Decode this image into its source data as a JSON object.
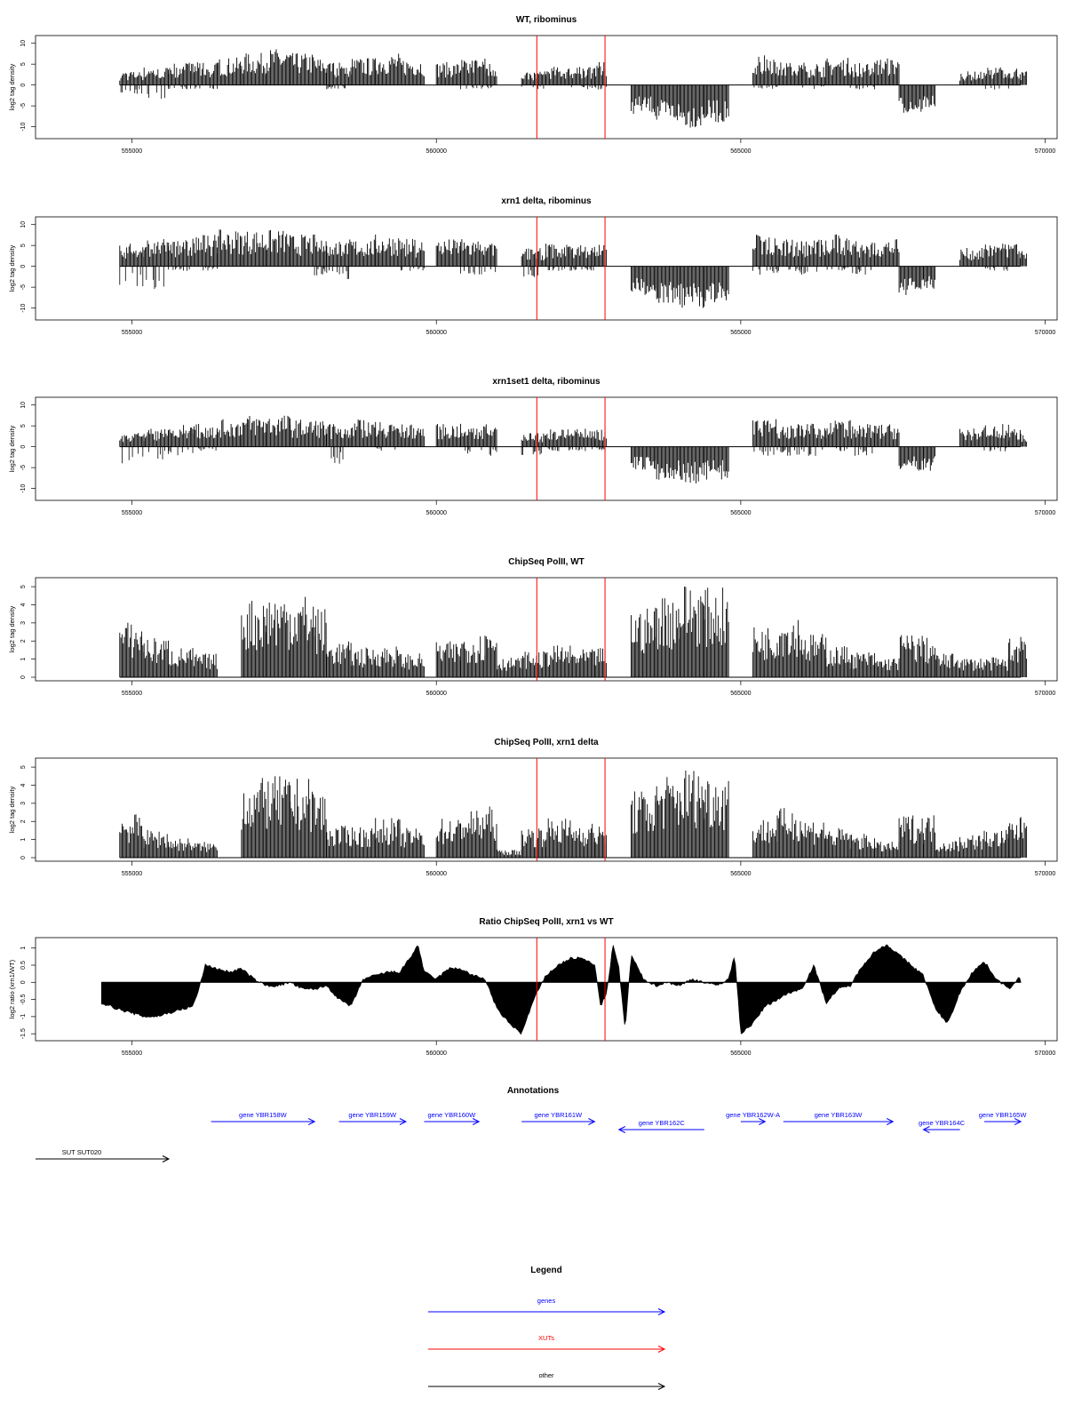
{
  "colors": {
    "gene": "#0000ff",
    "xut": "#ff0000",
    "other": "#000000",
    "marker": "#ff0000",
    "bars": "#000000"
  },
  "chart_data": [
    {
      "type": "bar",
      "title": "WT, ribominus",
      "ylabel": "log2 tag density",
      "xlim": [
        554000,
        569700
      ],
      "ylim": [
        -12,
        11
      ],
      "yticks": [
        10,
        5,
        0,
        -5,
        -10
      ],
      "xticks": [
        "555000",
        "560000",
        "565000",
        "570000"
      ],
      "markers": [
        561650,
        562770
      ],
      "x": [
        554800,
        555200,
        555600,
        556000,
        556400,
        556800,
        557200,
        557600,
        558000,
        558200,
        558600,
        559000,
        559400,
        559800,
        560000,
        560400,
        560800,
        561000,
        561400,
        561800,
        562200,
        562600,
        562800,
        563200,
        563600,
        564000,
        564400,
        564800,
        565200,
        565600,
        566000,
        566400,
        566800,
        567200,
        567600,
        568000,
        568200,
        568600,
        569000,
        569400,
        569600
      ],
      "values": [
        3,
        4,
        5,
        5,
        6,
        7,
        8,
        7,
        6,
        5,
        6,
        7,
        6,
        0,
        5,
        6,
        5,
        0,
        3,
        4,
        4,
        5,
        0,
        -6,
        -8,
        -9,
        -8,
        0,
        7,
        5,
        5,
        6,
        5,
        6,
        -6,
        -5,
        0,
        3,
        4,
        4,
        3
      ],
      "neg_values": [
        -2,
        -3,
        -1,
        -1,
        0,
        0,
        0,
        0,
        0,
        -1,
        0,
        0,
        0,
        0,
        0,
        -1,
        -1,
        0,
        -1,
        0,
        -1,
        -1,
        0,
        0,
        0,
        0,
        0,
        0,
        -1,
        0,
        -1,
        0,
        -1,
        0,
        0,
        0,
        0,
        0,
        -1,
        0,
        0
      ]
    },
    {
      "type": "bar",
      "title": "xrn1 delta, ribominus",
      "ylabel": "log2 tag density",
      "xlim": [
        554000,
        569700
      ],
      "ylim": [
        -12,
        11
      ],
      "yticks": [
        10,
        5,
        0,
        -5,
        -10
      ],
      "xticks": [
        "555000",
        "560000",
        "565000",
        "570000"
      ],
      "markers": [
        561650,
        562770
      ],
      "x": [
        554800,
        555200,
        555600,
        556000,
        556400,
        556800,
        557200,
        557600,
        558000,
        558200,
        558600,
        559000,
        559400,
        559800,
        560000,
        560400,
        560800,
        561000,
        561400,
        561800,
        562200,
        562600,
        562800,
        563200,
        563600,
        564000,
        564400,
        564800,
        565200,
        565600,
        566000,
        566400,
        566800,
        567200,
        567600,
        568000,
        568200,
        568600,
        569000,
        569400,
        569600
      ],
      "values": [
        5,
        6,
        6,
        7,
        8,
        8,
        8,
        7,
        7,
        6,
        6,
        7,
        6,
        0,
        6,
        6,
        5,
        0,
        4,
        5,
        5,
        5,
        0,
        -6,
        -8,
        -9,
        -8,
        0,
        7,
        6,
        6,
        7,
        6,
        6,
        -6,
        -5,
        0,
        4,
        5,
        5,
        4
      ],
      "neg_values": [
        -5,
        -5,
        -1,
        -1,
        0,
        0,
        0,
        0,
        -2,
        -3,
        0,
        0,
        -1,
        0,
        0,
        -2,
        -2,
        0,
        -3,
        -1,
        -1,
        -1,
        0,
        0,
        0,
        0,
        0,
        0,
        -2,
        -2,
        -2,
        -1,
        -2,
        0,
        0,
        0,
        0,
        0,
        -1,
        0,
        0
      ]
    },
    {
      "type": "bar",
      "title": "xrn1set1 delta, ribominus",
      "ylabel": "log2 tag density",
      "xlim": [
        554000,
        569700
      ],
      "ylim": [
        -12,
        11
      ],
      "yticks": [
        10,
        5,
        0,
        -5,
        -10
      ],
      "xticks": [
        "555000",
        "560000",
        "565000",
        "570000"
      ],
      "markers": [
        561650,
        562770
      ],
      "x": [
        554800,
        555200,
        555600,
        556000,
        556400,
        556800,
        557200,
        557600,
        558000,
        558200,
        558600,
        559000,
        559400,
        559800,
        560000,
        560400,
        560800,
        561000,
        561400,
        561800,
        562200,
        562600,
        562800,
        563200,
        563600,
        564000,
        564400,
        564800,
        565200,
        565600,
        566000,
        566400,
        566800,
        567200,
        567600,
        568000,
        568200,
        568600,
        569000,
        569400,
        569600
      ],
      "values": [
        3,
        4,
        5,
        5,
        6,
        7,
        7,
        6,
        6,
        5,
        6,
        6,
        5,
        0,
        5,
        5,
        5,
        0,
        3,
        4,
        4,
        4,
        0,
        -5,
        -7,
        -8,
        -7,
        0,
        7,
        5,
        5,
        6,
        5,
        5,
        -5,
        -5,
        0,
        4,
        5,
        4,
        3
      ],
      "neg_values": [
        -4,
        -3,
        -2,
        -1,
        0,
        0,
        0,
        0,
        0,
        -4,
        0,
        -1,
        0,
        0,
        0,
        -2,
        -2,
        0,
        -2,
        -1,
        -1,
        -1,
        0,
        0,
        0,
        0,
        0,
        0,
        -2,
        -2,
        -2,
        -1,
        -2,
        0,
        0,
        0,
        0,
        0,
        -1,
        0,
        0
      ]
    },
    {
      "type": "bar",
      "title": "ChipSeq PolII, WT",
      "ylabel": "log2 tag density",
      "xlim": [
        554000,
        569700
      ],
      "ylim": [
        0,
        5.3
      ],
      "yticks": [
        5,
        4,
        3,
        2,
        1,
        0
      ],
      "xticks": [
        "555000",
        "560000",
        "565000",
        "570000"
      ],
      "markers": [
        561650,
        562770
      ],
      "x": [
        554800,
        555200,
        555600,
        556000,
        556400,
        556800,
        557200,
        557600,
        558000,
        558200,
        558600,
        559000,
        559400,
        559800,
        560000,
        560400,
        560800,
        561000,
        561400,
        561800,
        562200,
        562600,
        562800,
        563200,
        563600,
        564000,
        564400,
        564800,
        565200,
        565600,
        566000,
        566400,
        566800,
        567200,
        567600,
        568000,
        568200,
        568600,
        569000,
        569400,
        569600
      ],
      "values": [
        2.8,
        2.0,
        1.5,
        1.2,
        0,
        4.0,
        4.3,
        4.2,
        3.5,
        1.8,
        1.5,
        1.6,
        1.2,
        0,
        1.8,
        2.2,
        2.6,
        1.0,
        1.3,
        1.6,
        1.4,
        1.5,
        0,
        3.5,
        4.3,
        4.8,
        4.5,
        0,
        2.6,
        3.2,
        2.2,
        1.6,
        1.3,
        1.0,
        2.2,
        2.0,
        1.2,
        1.0,
        1.0,
        2.0,
        2.6
      ]
    },
    {
      "type": "bar",
      "title": "ChipSeq PolII, xrn1 delta",
      "ylabel": "log2 tag density",
      "xlim": [
        554000,
        569700
      ],
      "ylim": [
        0,
        5.3
      ],
      "yticks": [
        5,
        4,
        3,
        2,
        1,
        0
      ],
      "xticks": [
        "555000",
        "560000",
        "565000",
        "570000"
      ],
      "markers": [
        561650,
        562770
      ],
      "x": [
        554800,
        555200,
        555600,
        556000,
        556400,
        556800,
        557200,
        557600,
        558000,
        558200,
        558600,
        559000,
        559400,
        559800,
        560000,
        560400,
        560800,
        561000,
        561400,
        561800,
        562200,
        562600,
        562800,
        563200,
        563600,
        564000,
        564400,
        564800,
        565200,
        565600,
        566000,
        566400,
        566800,
        567200,
        567600,
        568000,
        568200,
        568600,
        569000,
        569400,
        569600
      ],
      "values": [
        2.2,
        1.4,
        1.0,
        0.8,
        0,
        4.0,
        4.1,
        4.0,
        3.4,
        1.6,
        1.6,
        2.0,
        1.5,
        0,
        2.0,
        2.4,
        2.6,
        0.4,
        1.6,
        2.0,
        1.8,
        1.6,
        0,
        3.4,
        4.2,
        4.6,
        4.3,
        0,
        2.0,
        2.5,
        2.0,
        1.5,
        1.2,
        0.8,
        2.2,
        2.2,
        0.9,
        1.2,
        1.4,
        2.0,
        2.4
      ]
    },
    {
      "type": "area",
      "title": "Ratio ChipSeq PolII, xrn1 vs WT",
      "ylabel": "log2 ratio (xrn1/WT)",
      "xlim": [
        554000,
        569700
      ],
      "ylim": [
        -1.6,
        1.2
      ],
      "yticks": [
        1.0,
        0.5,
        0.0,
        -0.5,
        -1.0,
        -1.5
      ],
      "xticks": [
        "555000",
        "560000",
        "565000",
        "570000"
      ],
      "markers": [
        561650,
        562770
      ],
      "x": [
        554500,
        554800,
        555000,
        555200,
        555400,
        555600,
        555800,
        556000,
        556100,
        556200,
        556400,
        556600,
        556800,
        557000,
        557200,
        557400,
        557600,
        557800,
        558000,
        558200,
        558400,
        558600,
        558800,
        559000,
        559200,
        559400,
        559600,
        559700,
        559800,
        559900,
        560000,
        560200,
        560400,
        560600,
        560800,
        561000,
        561200,
        561400,
        561600,
        561800,
        562000,
        562200,
        562400,
        562600,
        562700,
        562800,
        562900,
        563000,
        563100,
        563200,
        563400,
        563600,
        563800,
        564000,
        564200,
        564400,
        564600,
        564800,
        564900,
        565000,
        565200,
        565400,
        565600,
        565800,
        566000,
        566200,
        566400,
        566600,
        566800,
        567000,
        567200,
        567400,
        567600,
        567800,
        568000,
        568200,
        568400,
        568600,
        568800,
        569000,
        569200,
        569400,
        569600
      ],
      "values": [
        -0.6,
        -0.8,
        -0.9,
        -1.0,
        -1.0,
        -0.9,
        -0.8,
        -0.7,
        -0.2,
        0.5,
        0.4,
        0.3,
        0.4,
        0.1,
        -0.1,
        -0.1,
        0.0,
        -0.2,
        -0.2,
        -0.1,
        -0.5,
        -0.7,
        0.1,
        0.2,
        0.3,
        0.3,
        0.8,
        1.1,
        0.3,
        0.2,
        0.1,
        0.4,
        0.4,
        0.2,
        0.1,
        -0.8,
        -1.2,
        -1.5,
        -0.5,
        0.2,
        0.5,
        0.7,
        0.7,
        0.5,
        -0.7,
        -0.3,
        1.1,
        0.4,
        -1.4,
        0.8,
        0.1,
        -0.1,
        0.0,
        -0.1,
        0.1,
        0.0,
        -0.1,
        0.1,
        0.8,
        -1.5,
        -1.2,
        -0.7,
        -0.5,
        -0.3,
        -0.2,
        0.5,
        -0.6,
        -0.2,
        -0.1,
        0.5,
        0.9,
        1.1,
        0.8,
        0.5,
        0.2,
        -0.8,
        -1.2,
        -0.3,
        0.3,
        0.6,
        0.1,
        -0.2,
        0.2
      ]
    }
  ],
  "annotations": {
    "title": "Annotations",
    "genes": [
      {
        "label": "gene YBR158W",
        "start": 556300,
        "end": 558000,
        "dir": "right"
      },
      {
        "label": "gene YBR159W",
        "start": 558400,
        "end": 559500,
        "dir": "right"
      },
      {
        "label": "gene YBR160W",
        "start": 559800,
        "end": 560700,
        "dir": "right"
      },
      {
        "label": "gene YBR161W",
        "start": 561400,
        "end": 562600,
        "dir": "right"
      },
      {
        "label": "gene YBR162C",
        "start": 563000,
        "end": 564400,
        "dir": "left"
      },
      {
        "label": "gene YBR162W-A",
        "start": 565000,
        "end": 565400,
        "dir": "right"
      },
      {
        "label": "gene YBR163W",
        "start": 565700,
        "end": 567500,
        "dir": "right"
      },
      {
        "label": "gene YBR164C",
        "start": 568000,
        "end": 568600,
        "dir": "left"
      },
      {
        "label": "gene YBR165W",
        "start": 569000,
        "end": 569600,
        "dir": "right"
      }
    ],
    "other": [
      {
        "label": "SUT SUT020",
        "start": 553600,
        "end": 555750,
        "dir": "right"
      }
    ]
  },
  "legend": {
    "title": "Legend",
    "items": [
      {
        "label": "genes",
        "kind": "gene"
      },
      {
        "label": "XUTs",
        "kind": "xut"
      },
      {
        "label": "other",
        "kind": "other"
      }
    ]
  }
}
